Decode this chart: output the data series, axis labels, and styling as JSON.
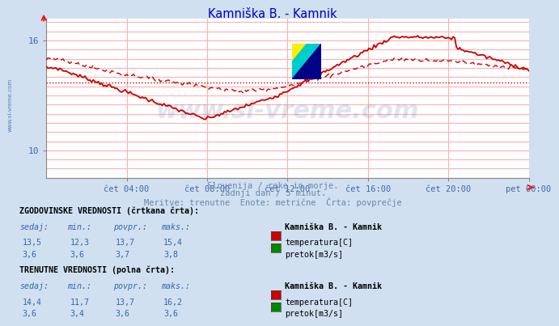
{
  "title": "Kamniška B. - Kamnik",
  "title_color": "#0000cc",
  "bg_color": "#d0e0f0",
  "plot_bg_color": "#ffffff",
  "grid_color": "#ffb0b0",
  "axis_label_color": "#4466aa",
  "subtitle_lines": [
    "Slovenija / reke in morje.",
    "zadnji dan / 5 minut.",
    "Meritve: trenutne  Enote: metrične  Črta: povprečje"
  ],
  "subtitle_color": "#6688aa",
  "watermark_text": "www.si-vreme.com",
  "watermark_color": "#1a3a8a",
  "watermark_alpha": 0.13,
  "x_labels": [
    "čet 04:00",
    "čet 08:00",
    "čet 12:00",
    "čet 16:00",
    "čet 20:00",
    "pet 00:00"
  ],
  "x_ticks_norm": [
    0.1667,
    0.3333,
    0.5,
    0.6667,
    0.8333,
    1.0
  ],
  "ylim": [
    8.5,
    17.2
  ],
  "y_ticks": [
    10,
    16
  ],
  "temp_color": "#cc0000",
  "flow_color": "#008800",
  "left_label_text": "www.si-vreme.com",
  "table_header1": "ZGODOVINSKE VREDNOSTI (črtkana črta):",
  "table_header2": "TRENUTNE VREDNOSTI (polna črta):",
  "col_headers": [
    "sedaj:",
    "min.:",
    "povpr.:",
    "maks.:"
  ],
  "station_label": "Kamniška B. - Kamnik",
  "hist_temp": {
    "sedaj": "13,5",
    "min": "12,3",
    "povpr": "13,7",
    "maks": "15,4"
  },
  "hist_flow": {
    "sedaj": "3,6",
    "min": "3,6",
    "povpr": "3,7",
    "maks": "3,8"
  },
  "curr_temp": {
    "sedaj": "14,4",
    "min": "11,7",
    "povpr": "13,7",
    "maks": "16,2"
  },
  "curr_flow": {
    "sedaj": "3,6",
    "min": "3,4",
    "povpr": "3,6",
    "maks": "3,6"
  },
  "hist_avg_temp": 13.7,
  "curr_avg_temp": 13.7,
  "n_points": 288
}
